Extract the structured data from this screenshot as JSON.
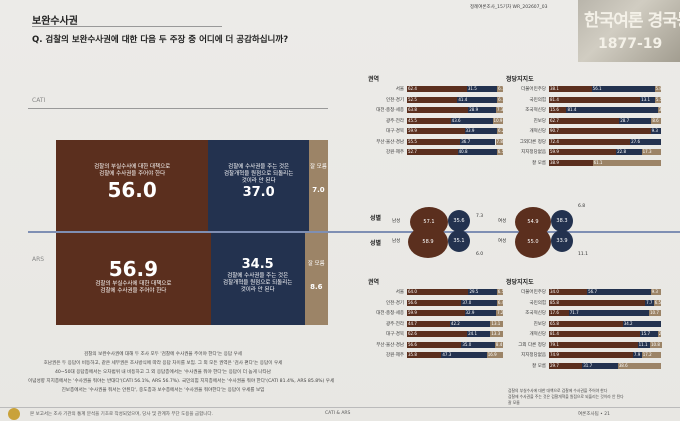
{
  "header": {
    "section": "보완수사권",
    "question": "Q. 검찰의 보완수사권에 대한 다음 두 주장 중 어디에 더 공감하십니까?",
    "pub": "정례여론조사_15기차    WR_202607_03",
    "logo_text": "한국여론 경국동향",
    "logo_year": "1877-19"
  },
  "modes": [
    {
      "label": "CATI",
      "a_text": [
        "검찰의 부실수사에 대한 대책으로",
        "검찰에 수사권을 주어야 한다"
      ],
      "a_value": "56.0",
      "b_text": [
        "검찰에 수사권을 주는 것은",
        "검찰개혁을 원점으로 되돌리는",
        "것이라 안 된다"
      ],
      "b_value": "37.0",
      "c_text": "잘 모름",
      "c_value": "7.0",
      "a": 56.0,
      "b": 37.0,
      "c": 7.0
    },
    {
      "label": "ARS",
      "a_text": [
        "검찰의 부실수사에 대한 대책으로",
        "검찰에 수사권을 주어야 한다"
      ],
      "a_value": "56.9",
      "b_text": [
        "검찰에 수사권을 주는 것은",
        "검찰개혁을 원점으로 되돌리는",
        "것이라 안 된다"
      ],
      "b_value": "34.5",
      "c_text": "잘 모름",
      "c_value": "8.6",
      "a": 56.9,
      "b": 34.5,
      "c": 8.6
    }
  ],
  "notes": [
    "검찰의 보완수사권에 대해 두 조사 모두 '검찰에 수사권을 주어야 한다'는 응답 우세",
    "호남권은 두 응답이 비등하고, 같은 세부권은 조사방식에 따라 응답 차이를 보임. 그 외 모든 권역은 '검사 편다'는 응답이 우세",
    "40~50대 응답층에서는 오차범위 내 비등하고 그 외 응답층에서는 '수사권을 줘야 한다'는 응답이 더 높게 나타남",
    "이념성향 지지층에서는 '수사권을 줘야는 반대다'(CATI 56.1%, ARS 56.7%). 국민의힘 지지층에서는 '수사권을 줘야 한다'(CATI 81.4%, ARS 85.8%) 우세",
    "진보층에서는 '수사권을 줘서는 안된다', 중도층과 보수층에서는 '수사권을 줘야한다'는 응답이 우세를 보임"
  ],
  "footer": {
    "left": "본 보고서는 조사 기관의 통계 분석을 기초로 작성되었으며, 당사 및 관계자 무단 도용을 금합니다.",
    "mid": "CATI & ARS",
    "right": "여론조사팀  •  21"
  },
  "colors": {
    "a": "#5b2f1e",
    "b": "#23324f",
    "c": "#9c8467",
    "gender_b": "#6a4a3a"
  },
  "panels": {
    "cati_region": {
      "title": "권역",
      "rows": [
        [
          "서울",
          "62.4",
          "31.5",
          "6.1",
          62.4,
          31.5,
          6.1
        ],
        [
          "인천·경기",
          "52.5",
          "41.4",
          "6.1",
          52.5,
          41.4,
          6.1
        ],
        [
          "대전·충청·세종",
          "63.8",
          "28.9",
          "7.3",
          63.8,
          28.9,
          7.3
        ],
        [
          "광주·전라",
          "45.5",
          "43.6",
          "10.9",
          45.5,
          43.6,
          10.9
        ],
        [
          "대구·경북",
          "59.9",
          "33.9",
          "6.2",
          59.9,
          33.9,
          6.2
        ],
        [
          "부산·울산·경남",
          "55.5",
          "36.7",
          "7.8",
          55.5,
          36.7,
          7.8
        ],
        [
          "강원·제주",
          "52.7",
          "40.8",
          "6.5",
          52.7,
          40.8,
          6.5
        ]
      ]
    },
    "cati_party": {
      "title": "정당지지도",
      "rows": [
        [
          "더불어민주당",
          "38.1",
          "56.1",
          "5.8",
          38.1,
          56.1,
          5.8
        ],
        [
          "국민의힘",
          "81.4",
          "13.1",
          "5.5",
          81.4,
          13.1,
          5.5
        ],
        [
          "조국혁신당",
          "15.6",
          "81.4",
          "3.0",
          15.6,
          81.4,
          3.0
        ],
        [
          "진보당",
          "62.7",
          "28.7",
          "8.6",
          62.7,
          28.7,
          8.6
        ],
        [
          "개혁신당",
          "90.7",
          "9.3",
          "",
          90.7,
          9.3,
          0
        ],
        [
          "그외다른 정당",
          "72.4",
          "27.6",
          "",
          72.4,
          27.6,
          0
        ],
        [
          "지지정당없음",
          "59.9",
          "22.8",
          "17.3",
          59.9,
          22.8,
          17.3
        ],
        [
          "잘 모름",
          "38.9",
          "",
          "61.1",
          38.9,
          0,
          61.1
        ]
      ]
    },
    "ars_region": {
      "title": "권역",
      "rows": [
        [
          "서울",
          "64.0",
          "29.5",
          "6.5",
          64.0,
          29.5,
          6.5
        ],
        [
          "인천·경기",
          "56.6",
          "37.0",
          "6.4",
          56.6,
          37.0,
          6.4
        ],
        [
          "대전·충청·세종",
          "59.9",
          "32.9",
          "7.2",
          59.9,
          32.9,
          7.2
        ],
        [
          "광주·전라",
          "44.7",
          "42.2",
          "13.1",
          44.7,
          42.2,
          13.1
        ],
        [
          "대구·경북",
          "62.6",
          "24.1",
          "13.3",
          62.6,
          24.1,
          13.3
        ],
        [
          "부산·울산·경남",
          "56.6",
          "35.0",
          "8.4",
          56.6,
          35.0,
          8.4
        ],
        [
          "강원·제주",
          "35.8",
          "47.3",
          "16.9",
          35.8,
          47.3,
          16.9
        ]
      ]
    },
    "ars_party": {
      "title": "정당지지도",
      "rows": [
        [
          "더불어민주당",
          "34.0",
          "56.7",
          "9.3",
          34.0,
          56.7,
          9.3
        ],
        [
          "국민의힘",
          "85.8",
          "7.7",
          "6.5",
          85.8,
          7.7,
          6.5
        ],
        [
          "조국혁신당",
          "17.6",
          "71.7",
          "10.7",
          17.6,
          71.7,
          10.7
        ],
        [
          "진보당",
          "65.8",
          "34.2",
          "",
          65.8,
          34.2,
          0
        ],
        [
          "개혁신당",
          "81.4",
          "15.7",
          "2.9",
          81.4,
          15.7,
          2.9
        ],
        [
          "그외 다른 정당",
          "79.1",
          "11.1",
          "10.8",
          79.1,
          11.1,
          10.8
        ],
        [
          "지지정당없음",
          "74.9",
          "7.9",
          "17.2",
          74.9,
          7.9,
          17.2
        ],
        [
          "잘 모름",
          "29.7",
          "31.7",
          "38.6",
          29.7,
          31.7,
          38.6
        ]
      ]
    }
  },
  "gender": {
    "title": "성별",
    "male": "남성",
    "female": "여성",
    "cati_male": [
      "57.1",
      "35.6",
      "7.3"
    ],
    "cati_female": [
      "54.9",
      "38.3",
      "6.8"
    ],
    "ars_male": [
      "58.9",
      "35.1",
      "6.0"
    ],
    "ars_female": [
      "55.0",
      "33.9",
      "11.1"
    ]
  },
  "legend": [
    "검찰의 부실수사에 대한 대책으로 검찰에 수사권을 주어야 한다",
    "검찰에 수사권을 주는 것은 검찰개혁을 원점으로 되돌리는 것이라 안 된다",
    "잘 모름"
  ]
}
